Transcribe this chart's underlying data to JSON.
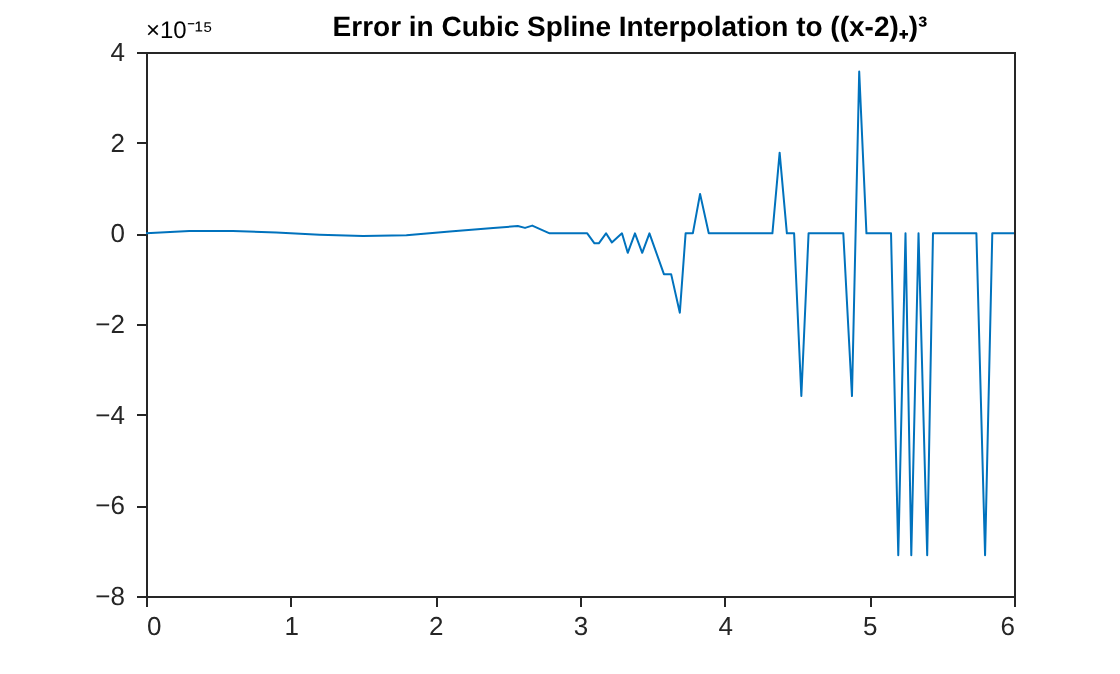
{
  "chart_data": {
    "type": "line",
    "title": "Error in Cubic Spline Interpolation to ((x-2)₊)³",
    "annotations": [
      "×10⁻¹⁵"
    ],
    "x": [
      0,
      0.3,
      0.6,
      0.9,
      1.2,
      1.5,
      1.8,
      2.1,
      2.4,
      2.57,
      2.62,
      2.67,
      2.72,
      2.79,
      3.05,
      3.1,
      3.13,
      3.18,
      3.22,
      3.29,
      3.33,
      3.38,
      3.43,
      3.48,
      3.58,
      3.63,
      3.69,
      3.73,
      3.78,
      3.83,
      3.89,
      4.33,
      4.38,
      4.43,
      4.48,
      4.53,
      4.58,
      4.82,
      4.88,
      4.93,
      4.98,
      5.15,
      5.2,
      5.25,
      5.29,
      5.34,
      5.4,
      5.44,
      5.74,
      5.8,
      5.85,
      6
    ],
    "series": [
      {
        "color": "#0072bd",
        "values": [
          0,
          0.05,
          0.05,
          0.02,
          -0.03,
          -0.06,
          -0.04,
          0.04,
          0.12,
          0.16,
          0.12,
          0.17,
          0.1,
          0,
          0,
          -0.22,
          -0.22,
          0,
          -0.2,
          0,
          -0.43,
          0,
          -0.43,
          0,
          -0.9,
          -0.9,
          -1.75,
          0,
          0,
          0.87,
          0,
          0,
          1.78,
          0,
          0,
          -3.59,
          0,
          0,
          -3.59,
          3.57,
          0,
          0,
          -7.1,
          0,
          -7.1,
          0,
          -7.1,
          0,
          0,
          -7.1,
          0,
          0
        ]
      }
    ],
    "xlim": [
      0,
      6
    ],
    "xticks": [
      0,
      1,
      2,
      3,
      4,
      5,
      6
    ],
    "ylim": [
      -8,
      4
    ],
    "yticks": [
      -8,
      -6,
      -4,
      -2,
      0,
      2,
      4
    ],
    "grid": false
  }
}
